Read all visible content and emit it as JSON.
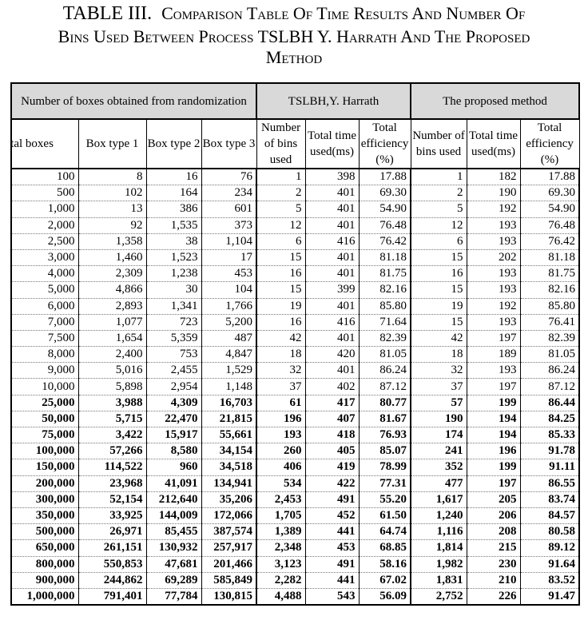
{
  "caption": {
    "line1_lead": "TABLE III.",
    "line1_rest": "Comparison Table Of Time Results And Number Of",
    "line2": "Bins Used Between Process TSLBH Y. Harrath And The Proposed",
    "line3": "Method"
  },
  "headers": {
    "group1": "Number of boxes obtained from randomization",
    "group2": "TSLBH,Y. Harrath",
    "group3": "The proposed method",
    "columns": [
      "ıtal boxes",
      "Box type 1",
      "Box type 2",
      "Box type 3",
      "Number of bins used",
      "Total time used(ms)",
      "Total efficiency (%)",
      "Number of bins used",
      "Total time used(ms)",
      "Total efficiency (%)"
    ]
  },
  "rows": [
    {
      "bold": false,
      "cells": [
        "100",
        "8",
        "16",
        "76",
        "1",
        "398",
        "17.88",
        "1",
        "182",
        "17.88"
      ]
    },
    {
      "bold": false,
      "cells": [
        "500",
        "102",
        "164",
        "234",
        "2",
        "401",
        "69.30",
        "2",
        "190",
        "69.30"
      ]
    },
    {
      "bold": false,
      "cells": [
        "1,000",
        "13",
        "386",
        "601",
        "5",
        "401",
        "54.90",
        "5",
        "192",
        "54.90"
      ]
    },
    {
      "bold": false,
      "cells": [
        "2,000",
        "92",
        "1,535",
        "373",
        "12",
        "401",
        "76.48",
        "12",
        "193",
        "76.48"
      ]
    },
    {
      "bold": false,
      "cells": [
        "2,500",
        "1,358",
        "38",
        "1,104",
        "6",
        "416",
        "76.42",
        "6",
        "193",
        "76.42"
      ]
    },
    {
      "bold": false,
      "cells": [
        "3,000",
        "1,460",
        "1,523",
        "17",
        "15",
        "401",
        "81.18",
        "15",
        "202",
        "81.18"
      ]
    },
    {
      "bold": false,
      "cells": [
        "4,000",
        "2,309",
        "1,238",
        "453",
        "16",
        "401",
        "81.75",
        "16",
        "193",
        "81.75"
      ]
    },
    {
      "bold": false,
      "cells": [
        "5,000",
        "4,866",
        "30",
        "104",
        "15",
        "399",
        "82.16",
        "15",
        "193",
        "82.16"
      ]
    },
    {
      "bold": false,
      "cells": [
        "6,000",
        "2,893",
        "1,341",
        "1,766",
        "19",
        "401",
        "85.80",
        "19",
        "192",
        "85.80"
      ]
    },
    {
      "bold": false,
      "cells": [
        "7,000",
        "1,077",
        "723",
        "5,200",
        "16",
        "416",
        "71.64",
        "15",
        "193",
        "76.41"
      ]
    },
    {
      "bold": false,
      "cells": [
        "7,500",
        "1,654",
        "5,359",
        "487",
        "42",
        "401",
        "82.39",
        "42",
        "197",
        "82.39"
      ]
    },
    {
      "bold": false,
      "cells": [
        "8,000",
        "2,400",
        "753",
        "4,847",
        "18",
        "420",
        "81.05",
        "18",
        "189",
        "81.05"
      ]
    },
    {
      "bold": false,
      "cells": [
        "9,000",
        "5,016",
        "2,455",
        "1,529",
        "32",
        "401",
        "86.24",
        "32",
        "193",
        "86.24"
      ]
    },
    {
      "bold": false,
      "cells": [
        "10,000",
        "5,898",
        "2,954",
        "1,148",
        "37",
        "402",
        "87.12",
        "37",
        "197",
        "87.12"
      ]
    },
    {
      "bold": true,
      "cells": [
        "25,000",
        "3,988",
        "4,309",
        "16,703",
        "61",
        "417",
        "80.77",
        "57",
        "199",
        "86.44"
      ]
    },
    {
      "bold": true,
      "cells": [
        "50,000",
        "5,715",
        "22,470",
        "21,815",
        "196",
        "407",
        "81.67",
        "190",
        "194",
        "84.25"
      ]
    },
    {
      "bold": true,
      "cells": [
        "75,000",
        "3,422",
        "15,917",
        "55,661",
        "193",
        "418",
        "76.93",
        "174",
        "194",
        "85.33"
      ]
    },
    {
      "bold": true,
      "cells": [
        "100,000",
        "57,266",
        "8,580",
        "34,154",
        "260",
        "405",
        "85.07",
        "241",
        "196",
        "91.78"
      ]
    },
    {
      "bold": true,
      "cells": [
        "150,000",
        "114,522",
        "960",
        "34,518",
        "406",
        "419",
        "78.99",
        "352",
        "199",
        "91.11"
      ]
    },
    {
      "bold": true,
      "cells": [
        "200,000",
        "23,968",
        "41,091",
        "134,941",
        "534",
        "422",
        "77.31",
        "477",
        "197",
        "86.55"
      ]
    },
    {
      "bold": true,
      "cells": [
        "300,000",
        "52,154",
        "212,640",
        "35,206",
        "2,453",
        "491",
        "55.20",
        "1,617",
        "205",
        "83.74"
      ]
    },
    {
      "bold": true,
      "cells": [
        "350,000",
        "33,925",
        "144,009",
        "172,066",
        "1,705",
        "452",
        "61.50",
        "1,240",
        "206",
        "84.57"
      ]
    },
    {
      "bold": true,
      "cells": [
        "500,000",
        "26,971",
        "85,455",
        "387,574",
        "1,389",
        "441",
        "64.74",
        "1,116",
        "208",
        "80.58"
      ]
    },
    {
      "bold": true,
      "cells": [
        "650,000",
        "261,151",
        "130,932",
        "257,917",
        "2,348",
        "453",
        "68.85",
        "1,814",
        "215",
        "89.12"
      ]
    },
    {
      "bold": true,
      "cells": [
        "800,000",
        "550,853",
        "47,681",
        "201,466",
        "3,123",
        "491",
        "58.16",
        "1,982",
        "230",
        "91.64"
      ]
    },
    {
      "bold": true,
      "cells": [
        "900,000",
        "244,862",
        "69,289",
        "585,849",
        "2,282",
        "441",
        "67.02",
        "1,831",
        "210",
        "83.52"
      ]
    },
    {
      "bold": true,
      "cells": [
        "1,000,000",
        "791,401",
        "77,784",
        "130,815",
        "4,488",
        "543",
        "56.09",
        "2,752",
        "226",
        "91.47"
      ]
    }
  ]
}
